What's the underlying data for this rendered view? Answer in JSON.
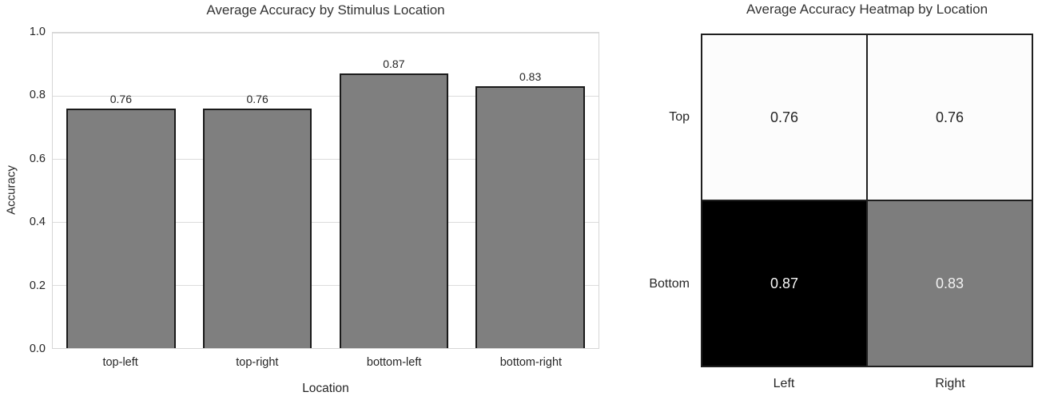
{
  "chart_data": [
    {
      "type": "bar",
      "title": "Average Accuracy by Stimulus Location",
      "xlabel": "Location",
      "ylabel": "Accuracy",
      "categories": [
        "top-left",
        "top-right",
        "bottom-left",
        "bottom-right"
      ],
      "values": [
        0.76,
        0.76,
        0.87,
        0.83
      ],
      "bar_labels": [
        "0.76",
        "0.76",
        "0.87",
        "0.83"
      ],
      "ylim": [
        0.0,
        1.0
      ],
      "yticks": [
        0.0,
        0.2,
        0.4,
        0.6,
        0.8,
        1.0
      ],
      "ytick_labels": [
        "0.0",
        "0.2",
        "0.4",
        "0.6",
        "0.8",
        "1.0"
      ],
      "grid": true,
      "legend": "none",
      "bar_color": "#7f7f7f",
      "bar_edge_color": "#1a1a1a",
      "grid_color": "#dcdcdc"
    },
    {
      "type": "heatmap",
      "title": "Average Accuracy Heatmap by Location",
      "rows": [
        "Top",
        "Bottom"
      ],
      "cols": [
        "Left",
        "Right"
      ],
      "values": [
        [
          0.76,
          0.76
        ],
        [
          0.87,
          0.83
        ]
      ],
      "cell_labels": [
        [
          "0.76",
          "0.76"
        ],
        [
          "0.87",
          "0.83"
        ]
      ],
      "cell_colors": [
        [
          "#fcfcfc",
          "#fcfcfc"
        ],
        [
          "#000000",
          "#7d7d7d"
        ]
      ],
      "cell_text_colors": [
        [
          "#262626",
          "#262626"
        ],
        [
          "#f5f5f5",
          "#f2f2f2"
        ]
      ],
      "line_color": "#1f1f1f",
      "colormap": "gray_r",
      "legend": "none"
    }
  ]
}
